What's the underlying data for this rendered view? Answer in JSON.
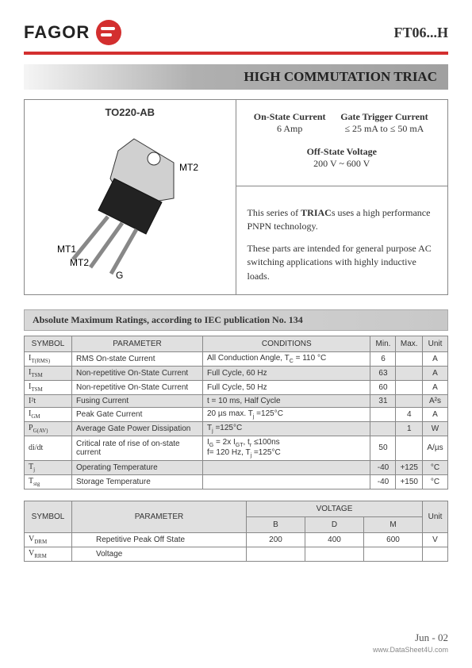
{
  "header": {
    "logo_text": "FAGOR",
    "part_number": "FT06...H"
  },
  "title": "HIGH COMMUTATION TRIAC",
  "package": {
    "label": "TO220-AB",
    "pins": {
      "mt2_top": "MT2",
      "mt1": "MT1",
      "mt2": "MT2",
      "g": "G"
    }
  },
  "specs": {
    "on_state_label": "On-State Current",
    "on_state_val": "6 Amp",
    "gate_trig_label": "Gate Trigger Current",
    "gate_trig_val": "≤ 25 mA to ≤ 50 mA",
    "off_state_label": "Off-State Voltage",
    "off_state_val": "200 V ~ 600 V",
    "desc1": "This series of TRIACs uses a high performance PNPN technology.",
    "desc2": "These parts are intended for general purpose AC switching applications with highly inductive loads."
  },
  "abs_max": {
    "heading": "Absolute Maximum Ratings, according to IEC publication No. 134",
    "headers": {
      "symbol": "SYMBOL",
      "parameter": "PARAMETER",
      "conditions": "CONDITIONS",
      "min": "Min.",
      "max": "Max.",
      "unit": "Unit"
    },
    "rows": [
      {
        "sym": "I<sub>T(RMS)</sub>",
        "param": "RMS On-state Current",
        "cond": "All Conduction Angle, T<sub>C</sub> = 110 °C",
        "min": "6",
        "max": "",
        "unit": "A",
        "shade": false
      },
      {
        "sym": "I<sub>TSM</sub>",
        "param": "Non-repetitive On-State Current",
        "cond": "Full Cycle, 60 Hz",
        "min": "63",
        "max": "",
        "unit": "A",
        "shade": true
      },
      {
        "sym": "I<sub>TSM</sub>",
        "param": "Non-repetitive On-State Current",
        "cond": "Full Cycle, 50 Hz",
        "min": "60",
        "max": "",
        "unit": "A",
        "shade": false
      },
      {
        "sym": "I²t",
        "param": "Fusing Current",
        "cond": "t = 10 ms, Half Cycle",
        "min": "31",
        "max": "",
        "unit": "A²s",
        "shade": true
      },
      {
        "sym": "I<sub>GM</sub>",
        "param": "Peak Gate Current",
        "cond": "20 µs max.        T<sub>j</sub> =125°C",
        "min": "",
        "max": "4",
        "unit": "A",
        "shade": false
      },
      {
        "sym": "P<sub>G(AV)</sub>",
        "param": "Average Gate Power Dissipation",
        "cond": "T<sub>j</sub> =125°C",
        "min": "",
        "max": "1",
        "unit": "W",
        "shade": true
      },
      {
        "sym": "di/dt",
        "param": "Critical rate of rise of on-state current",
        "cond": "I<sub>G</sub> = 2x I<sub>GT</sub>,  t<sub>r</sub> ≤100ns<br>f= 120 Hz, T<sub>j</sub> =125°C",
        "min": "50",
        "max": "",
        "unit": "A/µs",
        "shade": false
      },
      {
        "sym": "T<sub>j</sub>",
        "param": "Operating Temperature",
        "cond": "",
        "min": "-40",
        "max": "+125",
        "unit": "°C",
        "shade": true
      },
      {
        "sym": "T<sub>stg</sub>",
        "param": "Storage Temperature",
        "cond": "",
        "min": "-40",
        "max": "+150",
        "unit": "°C",
        "shade": false
      }
    ]
  },
  "voltage_table": {
    "headers": {
      "symbol": "SYMBOL",
      "parameter": "PARAMETER",
      "voltage": "VOLTAGE",
      "unit": "Unit",
      "b": "B",
      "d": "D",
      "m": "M"
    },
    "rows": [
      {
        "sym": "V<sub>DRM</sub>",
        "param": "Repetitive Peak Off State",
        "b": "200",
        "d": "400",
        "m": "600",
        "unit": "V"
      },
      {
        "sym": "V<sub>RRM</sub>",
        "param": "Voltage",
        "b": "",
        "d": "",
        "m": "",
        "unit": ""
      }
    ]
  },
  "footer": {
    "date": "Jun - 02",
    "url": "www.DataSheet4U.com"
  }
}
